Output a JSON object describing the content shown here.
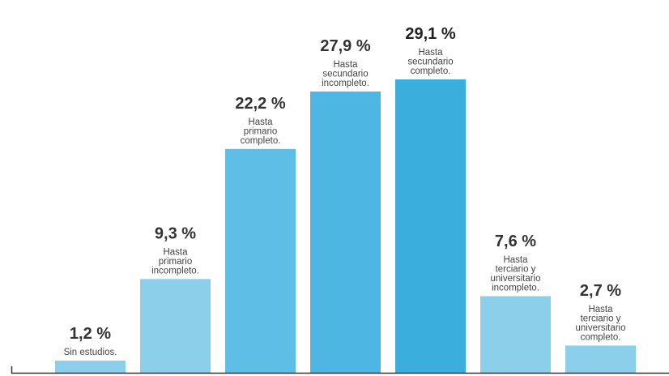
{
  "chart_data": {
    "type": "bar",
    "title": "",
    "xlabel": "",
    "ylabel": "",
    "ylim": [
      0,
      29.1
    ],
    "grid": false,
    "categories": [
      [
        "Sin estudios."
      ],
      [
        "Hasta",
        "primario",
        "incompleto."
      ],
      [
        "Hasta",
        "primario",
        "completo."
      ],
      [
        "Hasta",
        "secundario",
        "incompleto."
      ],
      [
        "Hasta",
        "secundario",
        "completo."
      ],
      [
        "Hasta",
        "terciario y",
        "universitario",
        "incompleto."
      ],
      [
        "Hasta",
        "terciario y",
        "universitario",
        "completo."
      ]
    ],
    "values": [
      1.2,
      9.3,
      22.2,
      27.9,
      29.1,
      7.6,
      2.7
    ],
    "value_labels": [
      "1,2 %",
      "9,3 %",
      "22,2 %",
      "27,9 %",
      "29,1 %",
      "7,6 %",
      "2,7 %"
    ],
    "bar_colors": [
      "#8ccfeb",
      "#8ccfeb",
      "#5fbee6",
      "#4db6e2",
      "#3aafdd",
      "#8ccfeb",
      "#8ccfeb"
    ],
    "value_color": "#333333",
    "highlight_value_color": "#222222",
    "category_color": "#444444",
    "axis_color": "#333333"
  }
}
